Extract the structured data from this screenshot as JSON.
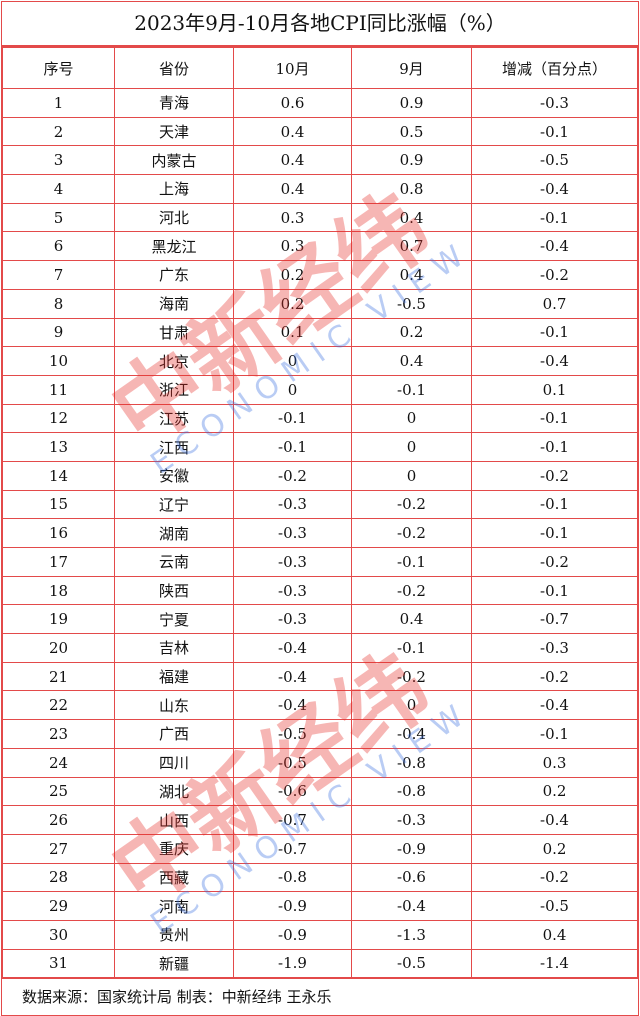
{
  "title": "2023年9月-10月各地CPI同比涨幅（%）",
  "columns": [
    "序号",
    "省份",
    "10月",
    "9月",
    "增减（百分点）"
  ],
  "rows": [
    [
      "1",
      "青海",
      "0.6",
      "0.9",
      "-0.3"
    ],
    [
      "2",
      "天津",
      "0.4",
      "0.5",
      "-0.1"
    ],
    [
      "3",
      "内蒙古",
      "0.4",
      "0.9",
      "-0.5"
    ],
    [
      "4",
      "上海",
      "0.4",
      "0.8",
      "-0.4"
    ],
    [
      "5",
      "河北",
      "0.3",
      "0.4",
      "-0.1"
    ],
    [
      "6",
      "黑龙江",
      "0.3",
      "0.7",
      "-0.4"
    ],
    [
      "7",
      "广东",
      "0.2",
      "0.4",
      "-0.2"
    ],
    [
      "8",
      "海南",
      "0.2",
      "-0.5",
      "0.7"
    ],
    [
      "9",
      "甘肃",
      "0.1",
      "0.2",
      "-0.1"
    ],
    [
      "10",
      "北京",
      "0",
      "0.4",
      "-0.4"
    ],
    [
      "11",
      "浙江",
      "0",
      "-0.1",
      "0.1"
    ],
    [
      "12",
      "江苏",
      "-0.1",
      "0",
      "-0.1"
    ],
    [
      "13",
      "江西",
      "-0.1",
      "0",
      "-0.1"
    ],
    [
      "14",
      "安徽",
      "-0.2",
      "0",
      "-0.2"
    ],
    [
      "15",
      "辽宁",
      "-0.3",
      "-0.2",
      "-0.1"
    ],
    [
      "16",
      "湖南",
      "-0.3",
      "-0.2",
      "-0.1"
    ],
    [
      "17",
      "云南",
      "-0.3",
      "-0.1",
      "-0.2"
    ],
    [
      "18",
      "陕西",
      "-0.3",
      "-0.2",
      "-0.1"
    ],
    [
      "19",
      "宁夏",
      "-0.3",
      "0.4",
      "-0.7"
    ],
    [
      "20",
      "吉林",
      "-0.4",
      "-0.1",
      "-0.3"
    ],
    [
      "21",
      "福建",
      "-0.4",
      "-0.2",
      "-0.2"
    ],
    [
      "22",
      "山东",
      "-0.4",
      "0",
      "-0.4"
    ],
    [
      "23",
      "广西",
      "-0.5",
      "-0.4",
      "-0.1"
    ],
    [
      "24",
      "四川",
      "-0.5",
      "-0.8",
      "0.3"
    ],
    [
      "25",
      "湖北",
      "-0.6",
      "-0.8",
      "0.2"
    ],
    [
      "26",
      "山西",
      "-0.7",
      "-0.3",
      "-0.4"
    ],
    [
      "27",
      "重庆",
      "-0.7",
      "-0.9",
      "0.2"
    ],
    [
      "28",
      "西藏",
      "-0.8",
      "-0.6",
      "-0.2"
    ],
    [
      "29",
      "河南",
      "-0.9",
      "-0.4",
      "-0.5"
    ],
    [
      "30",
      "贵州",
      "-0.9",
      "-1.3",
      "0.4"
    ],
    [
      "31",
      "新疆",
      "-1.9",
      "-0.5",
      "-1.4"
    ]
  ],
  "footer": "数据来源：国家统计局  制表：中新经纬  王永乐",
  "watermark": {
    "cn": "中新经纬",
    "en": "ECONOMIC VIEW"
  },
  "colors": {
    "border": "#e34a4a",
    "watermark_red": "#e8302a",
    "watermark_blue": "#3a6fe0"
  }
}
